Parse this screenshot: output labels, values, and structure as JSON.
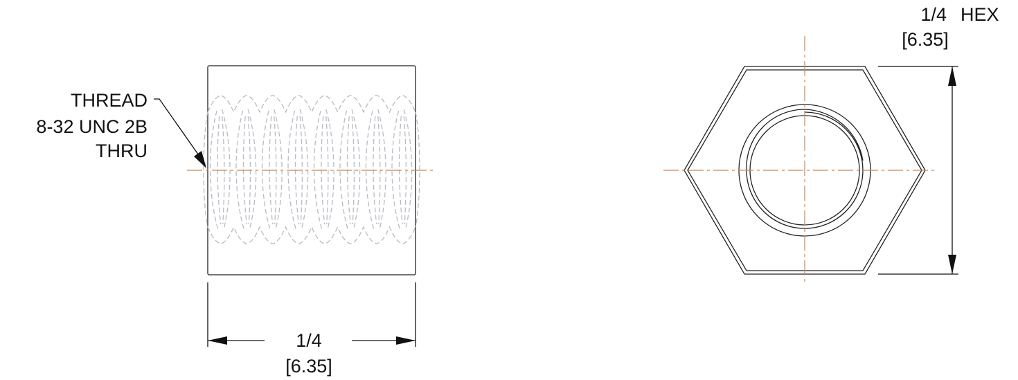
{
  "side_view": {
    "thread_callout": {
      "line1": "THREAD",
      "line2": "8-32 UNC 2B",
      "line3": "THRU"
    },
    "width_dimension": {
      "fraction": "1/4",
      "metric": "[6.35]"
    },
    "thread_turns": 8
  },
  "end_view": {
    "hex_dimension": {
      "fraction": "1/4",
      "label": "HEX",
      "metric": "[6.35]"
    }
  },
  "colors": {
    "outline": "#222222",
    "hidden_line": "#b9b9c4",
    "center_line": "#c8875a",
    "dimension": "#111111"
  }
}
